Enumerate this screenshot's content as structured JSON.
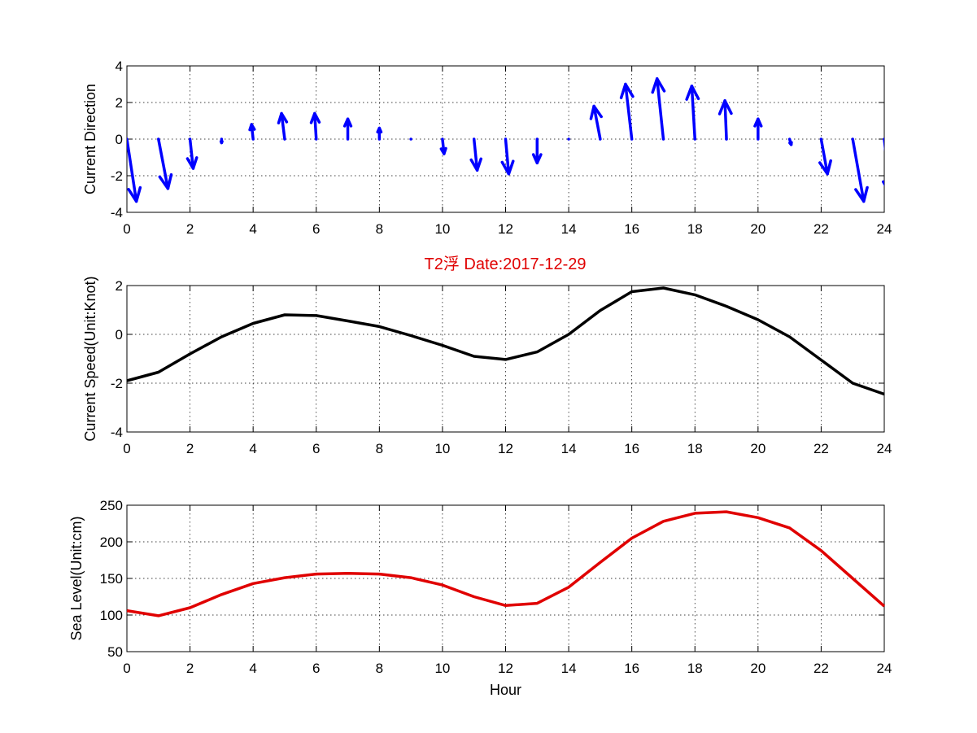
{
  "figure": {
    "title": "T2浮    Date:2017-12-29",
    "title_color": "#e00000"
  },
  "chart_data": [
    {
      "type": "quiver",
      "ylabel": "Current Direction",
      "xlim": [
        0,
        24
      ],
      "ylim": [
        -4,
        4
      ],
      "xticks": [
        0,
        2,
        4,
        6,
        8,
        10,
        12,
        14,
        16,
        18,
        20,
        22,
        24
      ],
      "yticks": [
        -4,
        -2,
        0,
        2,
        4
      ],
      "grid": true,
      "color": "#0000ff",
      "vectors": [
        {
          "x": 0,
          "u": 0.3,
          "v": -3.4
        },
        {
          "x": 1,
          "u": 0.3,
          "v": -2.7
        },
        {
          "x": 2,
          "u": 0.1,
          "v": -1.6
        },
        {
          "x": 3,
          "u": 0.0,
          "v": -0.2
        },
        {
          "x": 4,
          "u": -0.05,
          "v": 0.8
        },
        {
          "x": 5,
          "u": -0.1,
          "v": 1.4
        },
        {
          "x": 6,
          "u": -0.05,
          "v": 1.4
        },
        {
          "x": 7,
          "u": 0.0,
          "v": 1.1
        },
        {
          "x": 8,
          "u": 0.0,
          "v": 0.6
        },
        {
          "x": 9,
          "u": 0.0,
          "v": 0.0
        },
        {
          "x": 10,
          "u": 0.05,
          "v": -0.8
        },
        {
          "x": 11,
          "u": 0.1,
          "v": -1.7
        },
        {
          "x": 12,
          "u": 0.1,
          "v": -1.9
        },
        {
          "x": 13,
          "u": 0.0,
          "v": -1.3
        },
        {
          "x": 14,
          "u": 0.0,
          "v": 0.0
        },
        {
          "x": 15,
          "u": -0.2,
          "v": 1.8
        },
        {
          "x": 16,
          "u": -0.2,
          "v": 3.0
        },
        {
          "x": 17,
          "u": -0.2,
          "v": 3.3
        },
        {
          "x": 18,
          "u": -0.1,
          "v": 2.9
        },
        {
          "x": 19,
          "u": -0.05,
          "v": 2.1
        },
        {
          "x": 20,
          "u": 0.0,
          "v": 1.1
        },
        {
          "x": 21,
          "u": 0.05,
          "v": -0.3
        },
        {
          "x": 22,
          "u": 0.2,
          "v": -1.9
        },
        {
          "x": 23,
          "u": 0.35,
          "v": -3.4
        },
        {
          "x": 24,
          "u": 0.2,
          "v": -3.0
        }
      ]
    },
    {
      "type": "line",
      "ylabel": "Current Speed(Unit:Knot)",
      "xlim": [
        0,
        24
      ],
      "ylim": [
        -4,
        2
      ],
      "xticks": [
        0,
        2,
        4,
        6,
        8,
        10,
        12,
        14,
        16,
        18,
        20,
        22,
        24
      ],
      "yticks": [
        -4,
        -2,
        0,
        2
      ],
      "grid": true,
      "color": "#000000",
      "x": [
        0,
        1,
        2,
        3,
        4,
        5,
        6,
        7,
        8,
        9,
        10,
        11,
        12,
        13,
        14,
        15,
        16,
        17,
        18,
        19,
        20,
        21,
        22,
        23,
        24
      ],
      "y": [
        -1.9,
        -1.55,
        -0.8,
        -0.1,
        0.45,
        0.8,
        0.77,
        0.55,
        0.32,
        -0.05,
        -0.45,
        -0.9,
        -1.03,
        -0.72,
        0.0,
        0.98,
        1.75,
        1.9,
        1.62,
        1.15,
        0.6,
        -0.1,
        -1.05,
        -2.0,
        -2.45
      ]
    },
    {
      "type": "line",
      "ylabel": "Sea Level(Unit:cm)",
      "xlabel": "Hour",
      "xlim": [
        0,
        24
      ],
      "ylim": [
        50,
        250
      ],
      "xticks": [
        0,
        2,
        4,
        6,
        8,
        10,
        12,
        14,
        16,
        18,
        20,
        22,
        24
      ],
      "yticks": [
        50,
        100,
        150,
        200,
        250
      ],
      "grid": true,
      "color": "#e00000",
      "x": [
        0,
        1,
        2,
        3,
        4,
        5,
        6,
        7,
        8,
        9,
        10,
        11,
        12,
        13,
        14,
        15,
        16,
        17,
        18,
        19,
        20,
        21,
        22,
        23,
        24
      ],
      "y": [
        106,
        99,
        110,
        128,
        143,
        151,
        156,
        157,
        156,
        151,
        141,
        125,
        113,
        116,
        138,
        172,
        205,
        228,
        239,
        241,
        233,
        219,
        188,
        150,
        112
      ]
    }
  ]
}
